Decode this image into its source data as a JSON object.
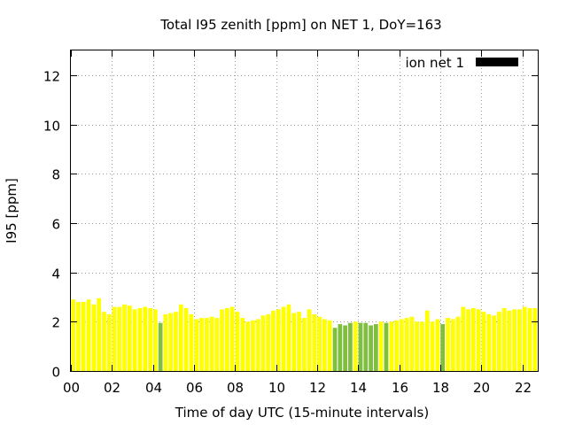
{
  "chart_data": {
    "type": "bar",
    "title": "Total I95 zenith [ppm] on NET 1, DoY=163",
    "xlabel": "Time of day UTC (15-minute intervals)",
    "ylabel": "I95 [ppm]",
    "ylim": [
      0,
      13
    ],
    "xlim": [
      0,
      22.75
    ],
    "yticks": [
      0,
      2,
      4,
      6,
      8,
      10,
      12
    ],
    "xticks": [
      {
        "v": 0,
        "label": "00"
      },
      {
        "v": 2,
        "label": "02"
      },
      {
        "v": 4,
        "label": "04"
      },
      {
        "v": 6,
        "label": "06"
      },
      {
        "v": 8,
        "label": "08"
      },
      {
        "v": 10,
        "label": "10"
      },
      {
        "v": 12,
        "label": "12"
      },
      {
        "v": 14,
        "label": "14"
      },
      {
        "v": 16,
        "label": "16"
      },
      {
        "v": 18,
        "label": "18"
      },
      {
        "v": 20,
        "label": "20"
      },
      {
        "v": 22,
        "label": "22"
      }
    ],
    "grid": true,
    "legend": {
      "label": "ion net 1",
      "position": "top-right",
      "color": "#000000"
    },
    "colors": {
      "high": "#ffff00",
      "low": "#7fbf3f"
    },
    "interval_hours": 0.25,
    "values": [
      2.9,
      2.8,
      2.8,
      2.9,
      2.7,
      2.95,
      2.4,
      2.3,
      2.6,
      2.6,
      2.7,
      2.65,
      2.5,
      2.55,
      2.6,
      2.55,
      2.5,
      1.95,
      2.3,
      2.35,
      2.4,
      2.7,
      2.55,
      2.3,
      2.1,
      2.15,
      2.15,
      2.2,
      2.15,
      2.5,
      2.55,
      2.6,
      2.4,
      2.15,
      2.0,
      2.05,
      2.1,
      2.25,
      2.3,
      2.45,
      2.5,
      2.6,
      2.7,
      2.35,
      2.4,
      2.15,
      2.5,
      2.3,
      2.2,
      2.1,
      2.05,
      1.75,
      1.9,
      1.85,
      1.95,
      2.0,
      1.95,
      1.95,
      1.85,
      1.9,
      2.0,
      1.95,
      2.0,
      2.05,
      2.1,
      2.15,
      2.2,
      2.0,
      2.0,
      2.45,
      2.0,
      2.1,
      1.9,
      2.15,
      2.1,
      2.2,
      2.6,
      2.5,
      2.55,
      2.5,
      2.4,
      2.3,
      2.25,
      2.4,
      2.55,
      2.45,
      2.5,
      2.5,
      2.6,
      2.55,
      2.55
    ]
  }
}
